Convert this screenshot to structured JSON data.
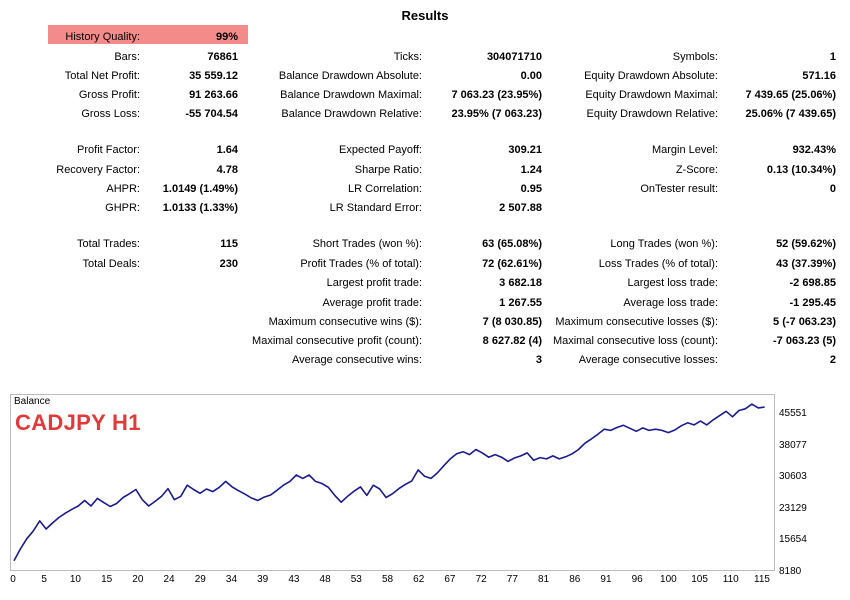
{
  "title": "Results",
  "history_quality": {
    "label": "History Quality:",
    "value": "99%"
  },
  "stats": [
    {
      "label": "Bars:",
      "value": "76861"
    },
    {
      "label": "Ticks:",
      "value": "304071710"
    },
    {
      "label": "Symbols:",
      "value": "1"
    },
    {
      "label": "Total Net Profit:",
      "value": "35 559.12"
    },
    {
      "label": "Balance Drawdown Absolute:",
      "value": "0.00"
    },
    {
      "label": "Equity Drawdown Absolute:",
      "value": "571.16"
    },
    {
      "label": "Gross Profit:",
      "value": "91 263.66"
    },
    {
      "label": "Balance Drawdown Maximal:",
      "value": "7 063.23 (23.95%)"
    },
    {
      "label": "Equity Drawdown Maximal:",
      "value": "7 439.65 (25.06%)"
    },
    {
      "label": "Gross Loss:",
      "value": "-55 704.54"
    },
    {
      "label": "Balance Drawdown Relative:",
      "value": "23.95% (7 063.23)"
    },
    {
      "label": "Equity Drawdown Relative:",
      "value": "25.06% (7 439.65)"
    },
    {
      "label": "Profit Factor:",
      "value": "1.64"
    },
    {
      "label": "Expected Payoff:",
      "value": "309.21"
    },
    {
      "label": "Margin Level:",
      "value": "932.43%"
    },
    {
      "label": "Recovery Factor:",
      "value": "4.78"
    },
    {
      "label": "Sharpe Ratio:",
      "value": "1.24"
    },
    {
      "label": "Z-Score:",
      "value": "0.13 (10.34%)"
    },
    {
      "label": "AHPR:",
      "value": "1.0149 (1.49%)"
    },
    {
      "label": "LR Correlation:",
      "value": "0.95"
    },
    {
      "label": "OnTester result:",
      "value": "0"
    },
    {
      "label": "GHPR:",
      "value": "1.0133 (1.33%)"
    },
    {
      "label": "LR Standard Error:",
      "value": "2 507.88"
    },
    {
      "label": "Total Trades:",
      "value": "115"
    },
    {
      "label": "Short Trades (won %):",
      "value": "63 (65.08%)"
    },
    {
      "label": "Long Trades (won %):",
      "value": "52 (59.62%)"
    },
    {
      "label": "Total Deals:",
      "value": "230"
    },
    {
      "label": "Profit Trades (% of total):",
      "value": "72 (62.61%)"
    },
    {
      "label": "Loss Trades (% of total):",
      "value": "43 (37.39%)"
    },
    {
      "label": "Largest profit trade:",
      "value": "3 682.18"
    },
    {
      "label": "Largest loss trade:",
      "value": "-2 698.85"
    },
    {
      "label": "Average profit trade:",
      "value": "1 267.55"
    },
    {
      "label": "Average loss trade:",
      "value": "-1 295.45"
    },
    {
      "label": "Maximum consecutive wins ($):",
      "value": "7 (8 030.85)"
    },
    {
      "label": "Maximum consecutive losses ($):",
      "value": "5 (-7 063.23)"
    },
    {
      "label": "Maximal consecutive profit (count):",
      "value": "8 627.82 (4)"
    },
    {
      "label": "Maximal consecutive loss (count):",
      "value": "-7 063.23 (5)"
    },
    {
      "label": "Average consecutive wins:",
      "value": "3"
    },
    {
      "label": "Average consecutive losses:",
      "value": "2"
    }
  ],
  "chart": {
    "caption": "Balance",
    "symbol_label": "CADJPY H1",
    "line_color": "#1b1b8f",
    "symbol_color": "#e23a3a"
  },
  "chart_data": {
    "type": "line",
    "title": "Balance",
    "annotation": "CADJPY H1",
    "xlabel": "",
    "ylabel": "",
    "xlim": [
      0,
      118
    ],
    "ylim": [
      8180,
      47500
    ],
    "yticks": [
      "45551",
      "38077",
      "30603",
      "23129",
      "15654",
      "8180"
    ],
    "xticks": [
      "0",
      "5",
      "10",
      "15",
      "20",
      "24",
      "29",
      "34",
      "39",
      "43",
      "48",
      "53",
      "58",
      "62",
      "67",
      "72",
      "77",
      "81",
      "86",
      "91",
      "96",
      "100",
      "105",
      "110",
      "115"
    ],
    "grid": false,
    "series": [
      {
        "x": [
          0,
          1,
          2,
          3,
          4,
          5,
          6,
          7,
          8,
          9,
          10,
          11,
          12,
          13,
          14,
          15,
          16,
          17,
          18,
          19,
          20,
          21,
          22,
          23,
          24,
          25,
          26,
          27,
          28,
          29,
          30,
          31,
          32,
          33,
          34,
          35,
          36,
          37,
          38,
          39,
          40,
          41,
          42,
          43,
          44,
          45,
          46,
          47,
          48,
          49,
          50,
          51,
          52,
          53,
          54,
          55,
          56,
          57,
          58,
          59,
          60,
          61,
          62,
          63,
          64,
          65,
          66,
          67,
          68,
          69,
          70,
          71,
          72,
          73,
          74,
          75,
          76,
          77,
          78,
          79,
          80,
          81,
          82,
          83,
          84,
          85,
          86,
          87,
          88,
          89,
          90,
          91,
          92,
          93,
          94,
          95,
          96,
          97,
          98,
          99,
          100,
          101,
          102,
          103,
          104,
          105,
          106,
          107,
          108,
          109,
          110,
          111,
          112,
          113,
          114,
          115,
          116,
          117
        ],
        "y": [
          9400,
          12200,
          14600,
          16400,
          18800,
          16900,
          18300,
          19600,
          20600,
          21500,
          22300,
          23600,
          22300,
          24100,
          23100,
          22200,
          22900,
          24300,
          25200,
          26200,
          23800,
          22300,
          23400,
          24600,
          26400,
          23800,
          24600,
          27200,
          26200,
          25300,
          26300,
          25700,
          26700,
          28100,
          26800,
          25900,
          25100,
          24200,
          23600,
          24400,
          24900,
          26000,
          27200,
          28100,
          29600,
          28800,
          29600,
          28100,
          27600,
          26700,
          24800,
          23200,
          24600,
          25800,
          26800,
          24800,
          27200,
          26300,
          24300,
          25200,
          26400,
          27400,
          28200,
          30800,
          29300,
          28800,
          30100,
          31800,
          33400,
          34600,
          35100,
          34400,
          35600,
          34800,
          33800,
          34400,
          33800,
          32800,
          33600,
          34100,
          34800,
          33100,
          33700,
          33400,
          34100,
          33400,
          33900,
          34600,
          35600,
          37100,
          38100,
          39200,
          40400,
          40100,
          40800,
          41300,
          40600,
          39900,
          40700,
          40100,
          40400,
          40100,
          39600,
          40200,
          41200,
          41900,
          41400,
          42300,
          41400,
          42600,
          43600,
          44600,
          43300,
          44800,
          45200,
          46300,
          45400,
          45600
        ]
      }
    ]
  }
}
